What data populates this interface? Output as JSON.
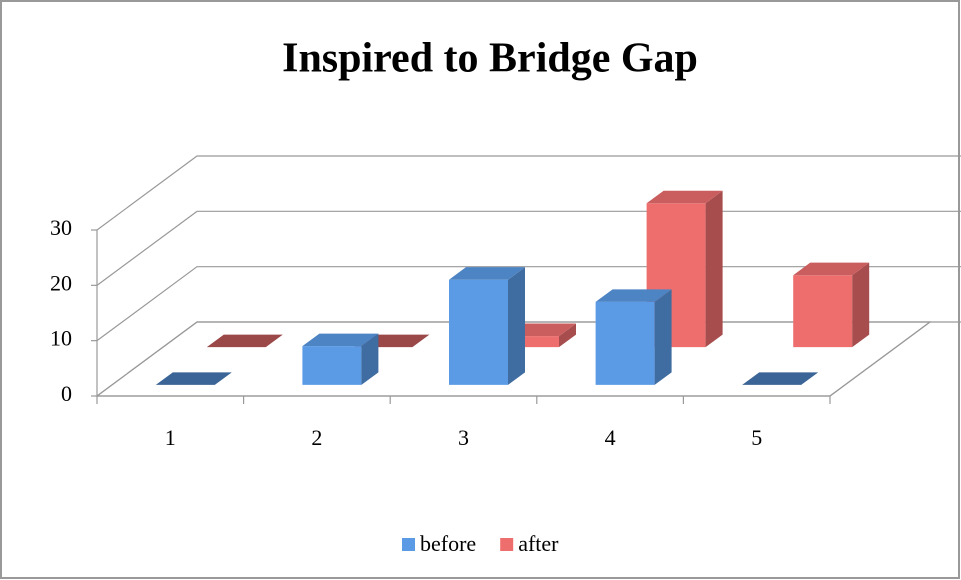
{
  "chart_data": {
    "type": "bar3d",
    "title": "Inspired to Bridge Gap",
    "categories": [
      "1",
      "2",
      "3",
      "4",
      "5"
    ],
    "series": [
      {
        "name": "before",
        "color": "#5b9be6",
        "values": [
          0,
          7,
          19,
          15,
          0
        ]
      },
      {
        "name": "after",
        "color": "#ee6e6e",
        "values": [
          0,
          0,
          2,
          26,
          13
        ]
      }
    ],
    "ylim": [
      0,
      30
    ],
    "yticks": [
      0,
      10,
      20,
      30
    ],
    "grid": true,
    "legend": "bottom"
  }
}
